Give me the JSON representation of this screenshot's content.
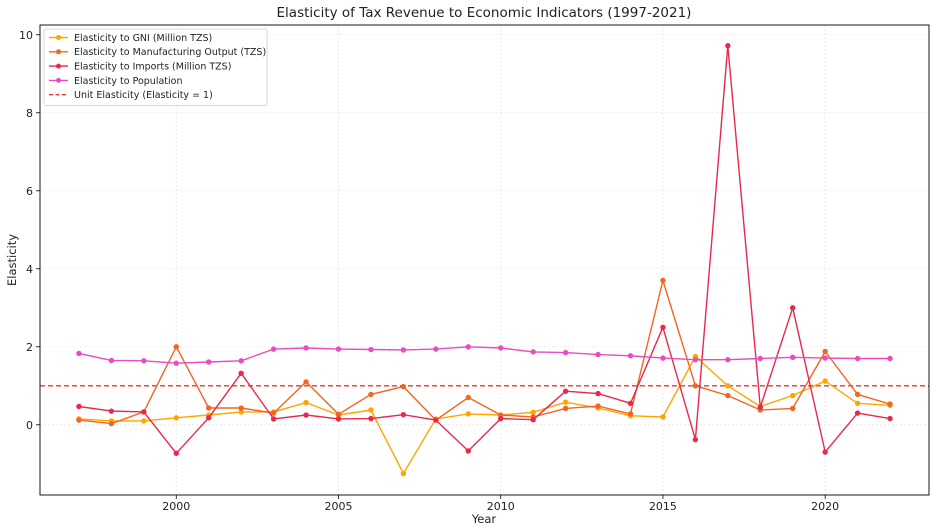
{
  "chart_data": {
    "type": "line",
    "title": "Elasticity of Tax Revenue to Economic Indicators (1997-2021)",
    "xlabel": "Year",
    "ylabel": "Elasticity",
    "xlim": [
      1995.8,
      2023.2
    ],
    "ylim": [
      -1.8,
      10.25
    ],
    "xticks": [
      2000,
      2005,
      2010,
      2015,
      2020
    ],
    "yticks": [
      0,
      2,
      4,
      6,
      8,
      10
    ],
    "grid": true,
    "legend_position": "top-left",
    "x": [
      1997,
      1998,
      1999,
      2000,
      2001,
      2002,
      2003,
      2004,
      2005,
      2006,
      2007,
      2008,
      2009,
      2010,
      2011,
      2012,
      2013,
      2014,
      2015,
      2016,
      2017,
      2018,
      2019,
      2020,
      2021,
      2022
    ],
    "series": [
      {
        "name": "Elasticity to GNI (Million TZS)",
        "color": "#ffa500",
        "values": [
          0.15,
          0.1,
          0.1,
          0.18,
          0.25,
          0.33,
          0.33,
          0.57,
          0.25,
          0.38,
          -1.25,
          0.15,
          0.28,
          0.25,
          0.32,
          0.58,
          0.43,
          0.23,
          0.2,
          1.75,
          1.0,
          0.47,
          0.75,
          1.12,
          0.55,
          0.5
        ]
      },
      {
        "name": "Elasticity to Manufacturing Output (TZS)",
        "color": "#f26522",
        "values": [
          0.12,
          0.03,
          0.33,
          2.0,
          0.43,
          0.43,
          0.3,
          1.1,
          0.27,
          0.78,
          0.98,
          0.12,
          0.7,
          0.25,
          0.2,
          0.42,
          0.48,
          0.28,
          3.7,
          1.0,
          0.75,
          0.38,
          0.42,
          1.88,
          0.78,
          0.53
        ]
      },
      {
        "name": "Elasticity to Imports (Million TZS)",
        "color": "#e8294c",
        "values": [
          0.47,
          0.35,
          0.33,
          -0.73,
          0.18,
          1.32,
          0.15,
          0.25,
          0.15,
          0.16,
          0.26,
          0.12,
          -0.67,
          0.16,
          0.13,
          0.86,
          0.8,
          0.55,
          2.5,
          -0.38,
          9.72,
          0.45,
          3.0,
          -0.7,
          0.3,
          0.16
        ]
      },
      {
        "name": "Elasticity to Population",
        "color": "#e84cc0",
        "values": [
          1.83,
          1.65,
          1.64,
          1.58,
          1.61,
          1.64,
          1.94,
          1.97,
          1.94,
          1.93,
          1.92,
          1.94,
          2.0,
          1.97,
          1.87,
          1.85,
          1.8,
          1.77,
          1.71,
          1.67,
          1.67,
          1.7,
          1.73,
          1.71,
          1.7,
          1.7
        ]
      }
    ],
    "reference_line": {
      "name": "Unit Elasticity (Elasticity = 1)",
      "y": 1,
      "color": "#e8383a",
      "style": "dashed"
    }
  }
}
